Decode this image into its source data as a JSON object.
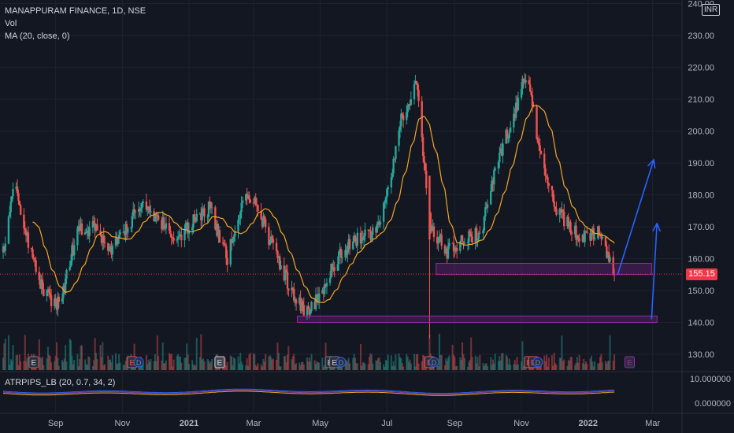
{
  "legend": {
    "title": "MANAPPURAM FINANCE, 1D, NSE",
    "vol": "Vol",
    "ma": "MA (20, close, 0)",
    "atr": "ATRPIPS_LB (20, 0.7, 34, 2)"
  },
  "currency": "INR",
  "last_price_label": "155.15",
  "colors": {
    "background": "#131722",
    "up": "#26a69a",
    "down": "#ef5350",
    "ma": "#f5a623",
    "zone": "#9c27b0",
    "arrow": "#2962ff",
    "price_tag": "#f23645",
    "grid": "#1e222d"
  },
  "chart_data": {
    "type": "candlestick",
    "title": "MANAPPURAM FINANCE, 1D, NSE",
    "ylim": [
      125,
      240
    ],
    "y_ticks": [
      "130.00",
      "140.00",
      "150.00",
      "160.00",
      "170.00",
      "180.00",
      "190.00",
      "200.00",
      "210.00",
      "220.00",
      "230.00",
      "240.00"
    ],
    "x_ticks": [
      "Sep",
      "Nov",
      "2021",
      "Mar",
      "May",
      "Jul",
      "Sep",
      "Nov",
      "2022",
      "Mar"
    ],
    "price_path": [
      {
        "date": "2020-07-15",
        "close": 162
      },
      {
        "date": "2020-07-25",
        "close": 183
      },
      {
        "date": "2020-08-05",
        "close": 168
      },
      {
        "date": "2020-08-20",
        "close": 150
      },
      {
        "date": "2020-09-05",
        "close": 145
      },
      {
        "date": "2020-09-20",
        "close": 168
      },
      {
        "date": "2020-10-05",
        "close": 170
      },
      {
        "date": "2020-10-20",
        "close": 162
      },
      {
        "date": "2020-11-05",
        "close": 170
      },
      {
        "date": "2020-11-20",
        "close": 178
      },
      {
        "date": "2020-12-05",
        "close": 172
      },
      {
        "date": "2020-12-20",
        "close": 166
      },
      {
        "date": "2021-01-05",
        "close": 172
      },
      {
        "date": "2021-01-20",
        "close": 176
      },
      {
        "date": "2021-02-05",
        "close": 160
      },
      {
        "date": "2021-02-20",
        "close": 180
      },
      {
        "date": "2021-03-05",
        "close": 176
      },
      {
        "date": "2021-03-20",
        "close": 162
      },
      {
        "date": "2021-04-05",
        "close": 150
      },
      {
        "date": "2021-04-20",
        "close": 142
      },
      {
        "date": "2021-05-05",
        "close": 152
      },
      {
        "date": "2021-05-20",
        "close": 162
      },
      {
        "date": "2021-06-05",
        "close": 166
      },
      {
        "date": "2021-06-20",
        "close": 168
      },
      {
        "date": "2021-07-05",
        "close": 185
      },
      {
        "date": "2021-07-15",
        "close": 205
      },
      {
        "date": "2021-07-28",
        "close": 215
      },
      {
        "date": "2021-08-10",
        "close": 170
      },
      {
        "date": "2021-08-25",
        "close": 162
      },
      {
        "date": "2021-09-10",
        "close": 166
      },
      {
        "date": "2021-09-25",
        "close": 168
      },
      {
        "date": "2021-10-10",
        "close": 190
      },
      {
        "date": "2021-10-25",
        "close": 205
      },
      {
        "date": "2021-11-05",
        "close": 218
      },
      {
        "date": "2021-11-15",
        "close": 200
      },
      {
        "date": "2021-11-30",
        "close": 178
      },
      {
        "date": "2021-12-10",
        "close": 172
      },
      {
        "date": "2021-12-25",
        "close": 166
      },
      {
        "date": "2022-01-10",
        "close": 168
      },
      {
        "date": "2022-01-25",
        "close": 155.15
      }
    ],
    "last_price": 155.15,
    "support_zones": [
      {
        "from": "2021-08-15",
        "to": "2022-02-28",
        "low": 155,
        "high": 158.5
      },
      {
        "from": "2021-04-10",
        "to": "2022-03-05",
        "low": 140,
        "high": 142
      }
    ],
    "projection_arrows": [
      {
        "from": {
          "date": "2022-01-28",
          "price": 155
        },
        "to": {
          "date": "2022-03-02",
          "price": 191
        }
      },
      {
        "from": {
          "date": "2022-02-28",
          "price": 141
        },
        "to": {
          "date": "2022-03-05",
          "price": 171
        }
      }
    ],
    "earnings_markers": [
      "E",
      "E",
      "E",
      "E",
      "E",
      "E",
      "E",
      "E",
      "E"
    ],
    "dividend_markers": [
      "D",
      "D",
      "D",
      "D"
    ],
    "atr_ticks": [
      "10.000000",
      "0.000000"
    ]
  }
}
